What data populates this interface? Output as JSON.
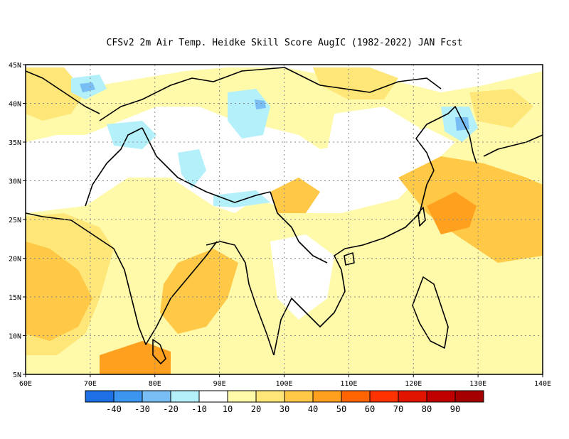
{
  "title": "CFSv2  2m Air Temp. Heidke Skill Score AugIC (1982-2022) JAN Fcst",
  "map": {
    "lon_range": [
      60,
      140
    ],
    "lat_range": [
      5,
      45
    ],
    "lon_ticks": [
      "60E",
      "70E",
      "80E",
      "90E",
      "100E",
      "110E",
      "120E",
      "130E",
      "140E"
    ],
    "lat_ticks": [
      "5N",
      "10N",
      "15N",
      "20N",
      "25N",
      "30N",
      "35N",
      "40N",
      "45N"
    ]
  },
  "colorbar": {
    "colors": [
      "#1e6ee6",
      "#3c96f0",
      "#78bef5",
      "#b4f0fa",
      "#ffffff",
      "#fffaaa",
      "#ffe678",
      "#ffc846",
      "#ffa01e",
      "#ff6400",
      "#ff3200",
      "#e11400",
      "#c00000",
      "#a50000"
    ],
    "labels": [
      "-40",
      "-30",
      "-20",
      "-10",
      "10",
      "20",
      "30",
      "40",
      "50",
      "60",
      "70",
      "80",
      "90"
    ]
  },
  "regions": {
    "weak_positive": "#fffaaa",
    "moderate_positive": "#ffe678",
    "strong_positive": "#ffc846",
    "very_strong_positive": "#ffa01e",
    "weak_negative": "#b4f0fa",
    "moderate_negative": "#78bef5"
  }
}
